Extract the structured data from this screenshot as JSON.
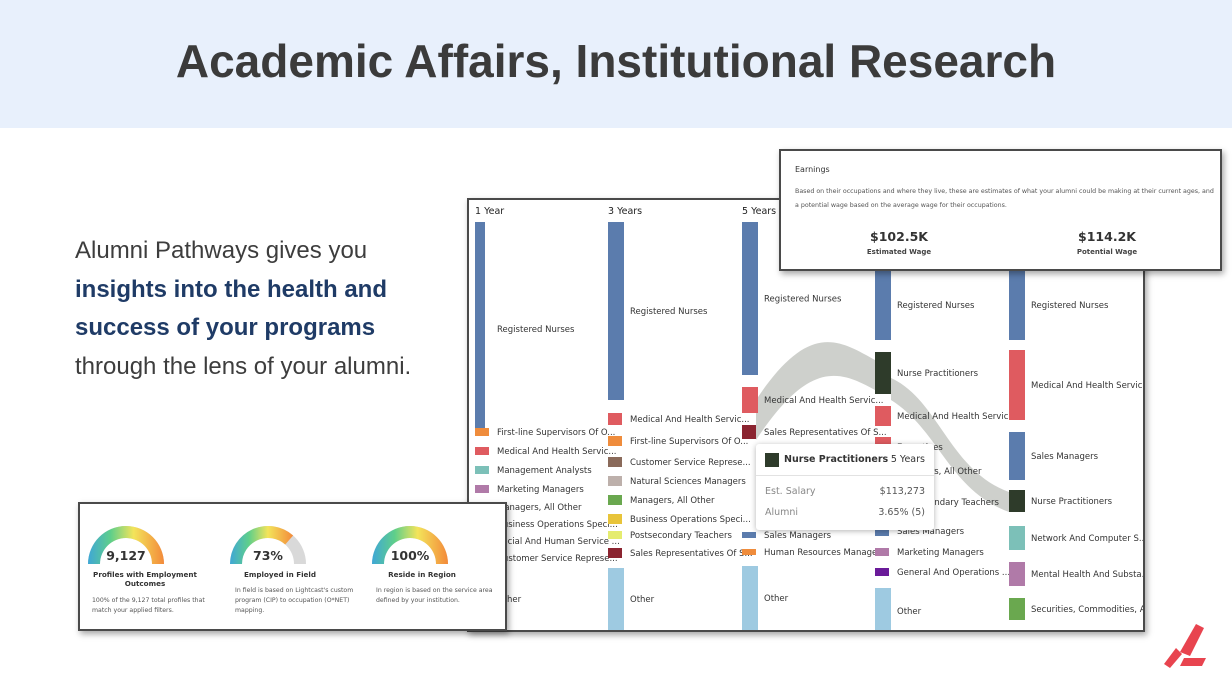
{
  "header": {
    "title": "Academic Affairs, Institutional Research"
  },
  "intro": {
    "line1": "Alumni Pathways gives you",
    "emphasis": "insights into the health and success of your programs",
    "line3": "through the lens of your alumni."
  },
  "sankey": {
    "columns": [
      {
        "header": "1 Year",
        "nodes": [
          {
            "label": "Registered Nurses",
            "color": "#5b7cad"
          },
          {
            "label": "First-line Supervisors Of O...",
            "color": "#ef8c3c"
          },
          {
            "label": "Medical And Health Servic...",
            "color": "#df5b60"
          },
          {
            "label": "Management Analysts",
            "color": "#7cc0b8"
          },
          {
            "label": "Marketing Managers",
            "color": "#b07aa8"
          },
          {
            "label": "Managers, All Other",
            "color": "#6aa84f"
          },
          {
            "label": "Business Operations Speci...",
            "color": "#e8c43a"
          },
          {
            "label": "Social And Human Service ...",
            "color": "#6a1a99"
          },
          {
            "label": "Customer Service Represe...",
            "color": "#8a6a5a"
          },
          {
            "label": "Other",
            "color": "#9ecae1"
          }
        ]
      },
      {
        "header": "3 Years",
        "nodes": [
          {
            "label": "Registered Nurses",
            "color": "#5b7cad"
          },
          {
            "label": "Medical And Health Servic...",
            "color": "#df5b60"
          },
          {
            "label": "First-line Supervisors Of O...",
            "color": "#ef8c3c"
          },
          {
            "label": "Customer Service Represe...",
            "color": "#8a6a5a"
          },
          {
            "label": "Natural Sciences Managers",
            "color": "#bdb0ab"
          },
          {
            "label": "Managers, All Other",
            "color": "#6aa84f"
          },
          {
            "label": "Business Operations Speci...",
            "color": "#e8c43a"
          },
          {
            "label": "Postsecondary Teachers",
            "color": "#e5ec6f"
          },
          {
            "label": "Sales Representatives Of S...",
            "color": "#8b2430"
          },
          {
            "label": "Other",
            "color": "#9ecae1"
          }
        ]
      },
      {
        "header": "5 Years",
        "nodes": [
          {
            "label": "Registered Nurses",
            "color": "#5b7cad"
          },
          {
            "label": "Medical And Health Servic...",
            "color": "#df5b60"
          },
          {
            "label": "Sales Representatives Of S...",
            "color": "#8b2430"
          },
          {
            "label": "Sales Managers",
            "color": "#5b7cad"
          },
          {
            "label": "Human Resources Managers",
            "color": "#ef8c3c"
          },
          {
            "label": "Other",
            "color": "#9ecae1"
          }
        ]
      },
      {
        "header": "",
        "nodes": [
          {
            "label": "Registered Nurses",
            "color": "#5b7cad"
          },
          {
            "label": "Nurse Practitioners",
            "color": "#2e3b2a"
          },
          {
            "label": "Medical And Health Servic...",
            "color": "#df5b60"
          },
          {
            "label": "Executives",
            "color": "#df5b60"
          },
          {
            "label": "Managers, All Other",
            "color": "#6aa84f"
          },
          {
            "label": "Postsecondary Teachers",
            "color": "#e5ec6f"
          },
          {
            "label": "Sales Managers",
            "color": "#5b7cad"
          },
          {
            "label": "Marketing Managers",
            "color": "#b07aa8"
          },
          {
            "label": "General And Operations ...",
            "color": "#6a1a99"
          },
          {
            "label": "Other",
            "color": "#9ecae1"
          }
        ]
      },
      {
        "header": "",
        "nodes": [
          {
            "label": "Registered Nurses",
            "color": "#5b7cad"
          },
          {
            "label": "Medical And Health Servic...",
            "color": "#df5b60"
          },
          {
            "label": "Sales Managers",
            "color": "#5b7cad"
          },
          {
            "label": "Nurse Practitioners",
            "color": "#2e3b2a"
          },
          {
            "label": "Network And Computer S...",
            "color": "#7cc0b8"
          },
          {
            "label": "Mental Health And Substa...",
            "color": "#b07aa8"
          },
          {
            "label": "Securities, Commodities, A...",
            "color": "#6aa84f"
          }
        ]
      }
    ]
  },
  "earnings": {
    "title": "Earnings",
    "description": "Based on their occupations and where they live, these are estimates of what your alumni could be making at their current ages, and a potential wage based on the average wage for their occupations.",
    "estimated": {
      "value": "$102.5K",
      "label": "Estimated Wage"
    },
    "potential": {
      "value": "$114.2K",
      "label": "Potential Wage"
    }
  },
  "tooltip": {
    "name": "Nurse Practitioners",
    "years": "5 Years",
    "color": "#2e3b2a",
    "salary_label": "Est. Salary",
    "salary_value": "$113,273",
    "alumni_label": "Alumni",
    "alumni_value": "3.65% (5)"
  },
  "gauges": [
    {
      "value": "9,127",
      "fraction": 1.0,
      "title": "Profiles with Employment Outcomes",
      "description": "100% of the 9,127 total profiles that match your applied filters."
    },
    {
      "value": "73%",
      "fraction": 0.73,
      "title": "Employed in Field",
      "description": "In field is based on Lightcast's custom program (CIP) to occupation (O*NET) mapping."
    },
    {
      "value": "100%",
      "fraction": 1.0,
      "title": "Reside in Region",
      "description": "In region is based on the service area defined by your institution."
    }
  ]
}
